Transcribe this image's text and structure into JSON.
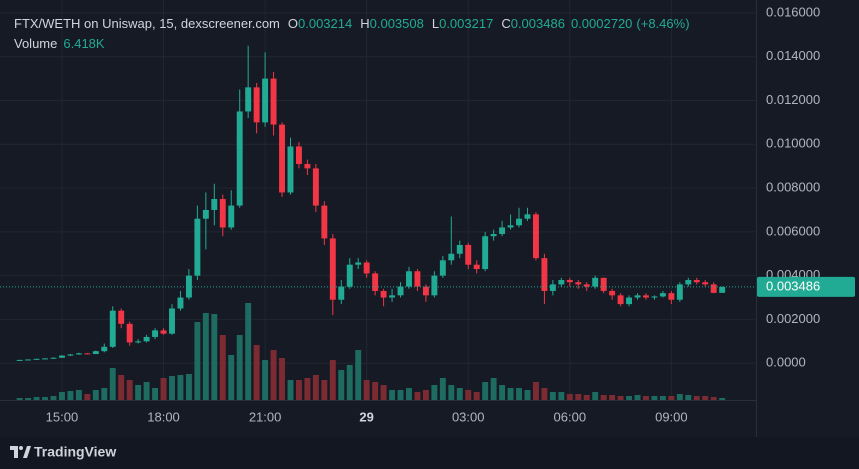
{
  "chart_data": {
    "type": "candlestick",
    "title": "FTX/WETH on Uniswap, 15, dexscreener.com",
    "ohlc_header": [
      {
        "key": "O",
        "value": "0.003214"
      },
      {
        "key": "H",
        "value": "0.003508"
      },
      {
        "key": "L",
        "value": "0.003217"
      },
      {
        "key": "C",
        "value": "0.003486"
      }
    ],
    "change": "0.0002720",
    "change_percent": "(+8.46%)",
    "volume_label": "Volume",
    "volume_value": "6.418K",
    "up_color": "#22ab94",
    "down_color": "#f23645",
    "volume_up_color": "#1d6b61",
    "volume_down_color": "#7d2b33",
    "grid": true,
    "x": [
      13.75,
      14,
      14.25,
      14.5,
      14.75,
      15,
      15.25,
      15.5,
      15.75,
      16,
      16.25,
      16.5,
      16.75,
      17,
      17.25,
      17.5,
      17.75,
      18,
      18.25,
      18.5,
      18.75,
      19,
      19.25,
      19.5,
      19.75,
      20,
      20.25,
      20.5,
      20.75,
      21,
      21.25,
      21.5,
      21.75,
      22,
      22.25,
      22.5,
      22.75,
      23,
      23.25,
      23.5,
      23.75,
      24,
      24.25,
      24.5,
      24.75,
      25,
      25.25,
      25.5,
      25.75,
      26,
      26.25,
      26.5,
      26.75,
      27,
      27.25,
      27.5,
      27.75,
      28,
      28.25,
      28.5,
      28.75,
      29,
      29.25,
      29.5,
      29.75,
      30,
      30.25,
      30.5,
      30.75,
      31,
      31.25,
      31.5,
      31.75,
      32,
      32.25,
      32.5,
      32.75,
      33,
      33.25,
      33.5,
      33.75,
      34,
      34.25,
      34.5
    ],
    "open": [
      0.00014,
      0.00015,
      0.00017,
      0.0002,
      0.00022,
      0.00025,
      0.00035,
      0.0004,
      0.00045,
      0.00042,
      0.00055,
      0.00075,
      0.0024,
      0.0018,
      0.00095,
      0.001,
      0.0012,
      0.0015,
      0.00135,
      0.0025,
      0.003,
      0.004,
      0.0066,
      0.007,
      0.0075,
      0.0062,
      0.0072,
      0.0115,
      0.0126,
      0.011,
      0.013,
      0.0109,
      0.0078,
      0.0099,
      0.0091,
      0.0089,
      0.0072,
      0.0057,
      0.0029,
      0.0035,
      0.0045,
      0.0046,
      0.0041,
      0.0033,
      0.003,
      0.0031,
      0.0035,
      0.0042,
      0.0035,
      0.0031,
      0.004,
      0.0047,
      0.005,
      0.0054,
      0.0045,
      0.0043,
      0.0058,
      0.0059,
      0.0062,
      0.0063,
      0.0066,
      0.0068,
      0.0048,
      0.0033,
      0.0036,
      0.0038,
      0.0037,
      0.0036,
      0.0035,
      0.0039,
      0.0033,
      0.0031,
      0.0027,
      0.003,
      0.0031,
      0.003,
      0.00305,
      0.0032,
      0.0029,
      0.0036,
      0.0038,
      0.0037,
      0.0036,
      0.003214
    ],
    "high": [
      0.00016,
      0.00018,
      0.00021,
      0.00023,
      0.00027,
      0.00037,
      0.00042,
      0.00048,
      0.00047,
      0.00058,
      0.0009,
      0.0026,
      0.0025,
      0.0019,
      0.0011,
      0.0013,
      0.0016,
      0.0016,
      0.0027,
      0.0033,
      0.0043,
      0.0072,
      0.0078,
      0.0082,
      0.0077,
      0.0079,
      0.0125,
      0.0145,
      0.0128,
      0.0142,
      0.0133,
      0.011,
      0.0103,
      0.0101,
      0.0093,
      0.0091,
      0.0074,
      0.0059,
      0.0038,
      0.0048,
      0.0048,
      0.0047,
      0.0042,
      0.0034,
      0.0034,
      0.0037,
      0.0044,
      0.0043,
      0.0036,
      0.0042,
      0.0049,
      0.0067,
      0.0056,
      0.0055,
      0.0047,
      0.006,
      0.0061,
      0.0065,
      0.0068,
      0.0071,
      0.0071,
      0.0069,
      0.005,
      0.0038,
      0.0039,
      0.0039,
      0.0038,
      0.0037,
      0.004,
      0.0039,
      0.0034,
      0.0032,
      0.0031,
      0.0032,
      0.0032,
      0.0031,
      0.0033,
      0.0033,
      0.0037,
      0.0039,
      0.0039,
      0.0038,
      0.0037,
      0.003508
    ],
    "low": [
      0.00013,
      0.00014,
      0.00016,
      0.00019,
      0.00021,
      0.00024,
      0.00033,
      0.00038,
      0.0004,
      0.00041,
      0.0005,
      0.0007,
      0.0016,
      0.0008,
      0.0009,
      0.00095,
      0.0011,
      0.0013,
      0.0013,
      0.0024,
      0.0029,
      0.0038,
      0.0052,
      0.0063,
      0.0058,
      0.0061,
      0.0071,
      0.0112,
      0.0105,
      0.0108,
      0.0104,
      0.0076,
      0.0077,
      0.0089,
      0.0086,
      0.0069,
      0.0054,
      0.0022,
      0.0027,
      0.0034,
      0.0043,
      0.0039,
      0.0031,
      0.0026,
      0.0028,
      0.003,
      0.0034,
      0.0033,
      0.0028,
      0.003,
      0.0039,
      0.0045,
      0.0048,
      0.0043,
      0.0041,
      0.0042,
      0.0056,
      0.0058,
      0.0061,
      0.0062,
      0.0065,
      0.0047,
      0.0027,
      0.0031,
      0.0035,
      0.0035,
      0.0034,
      0.0033,
      0.0034,
      0.0032,
      0.0029,
      0.0026,
      0.0026,
      0.0029,
      0.0029,
      0.0029,
      0.003,
      0.0027,
      0.0028,
      0.0035,
      0.0036,
      0.0035,
      0.0032,
      0.003217
    ],
    "close": [
      0.00015,
      0.00017,
      0.0002,
      0.00022,
      0.00025,
      0.00035,
      0.0004,
      0.00045,
      0.00042,
      0.00055,
      0.00075,
      0.0024,
      0.0018,
      0.00095,
      0.001,
      0.0012,
      0.0015,
      0.00135,
      0.0025,
      0.003,
      0.004,
      0.0066,
      0.007,
      0.0075,
      0.0062,
      0.0072,
      0.0115,
      0.0126,
      0.011,
      0.013,
      0.0109,
      0.0078,
      0.0099,
      0.0091,
      0.0089,
      0.0072,
      0.0057,
      0.0029,
      0.0035,
      0.0045,
      0.0046,
      0.0041,
      0.0033,
      0.003,
      0.0031,
      0.0035,
      0.0042,
      0.0035,
      0.0031,
      0.004,
      0.0047,
      0.005,
      0.0054,
      0.0045,
      0.0043,
      0.0058,
      0.0059,
      0.0062,
      0.0063,
      0.0066,
      0.0068,
      0.0048,
      0.0033,
      0.0036,
      0.0038,
      0.0037,
      0.0036,
      0.0035,
      0.0039,
      0.0033,
      0.0031,
      0.0027,
      0.003,
      0.0031,
      0.003,
      0.00305,
      0.0032,
      0.0029,
      0.0036,
      0.0038,
      0.0037,
      0.0036,
      0.003214,
      0.003486
    ],
    "volume": [
      6400,
      6400,
      9600,
      9600,
      12800,
      25600,
      28800,
      32000,
      19200,
      32000,
      38400,
      102400,
      80000,
      64000,
      48000,
      57600,
      38400,
      70400,
      76800,
      80000,
      83200,
      249600,
      278400,
      275200,
      208000,
      144000,
      208000,
      310400,
      176000,
      128000,
      160000,
      134400,
      64000,
      64000,
      70400,
      80000,
      64000,
      128000,
      96000,
      112000,
      160000,
      64000,
      57600,
      48000,
      32000,
      32000,
      38400,
      25600,
      32000,
      48000,
      70400,
      48000,
      38400,
      32000,
      25600,
      57600,
      70400,
      48000,
      38400,
      38400,
      32000,
      57600,
      38400,
      25600,
      25600,
      19200,
      19200,
      16000,
      25600,
      16000,
      16000,
      12800,
      12800,
      16000,
      12800,
      12800,
      12800,
      12800,
      19200,
      16000,
      12800,
      12800,
      9600,
      6418
    ],
    "volume_lim": [
      0,
      1280000
    ],
    "xlim": [
      13.17,
      35.47
    ],
    "xticks": [
      {
        "value": 15,
        "label": "15:00"
      },
      {
        "value": 18,
        "label": "18:00"
      },
      {
        "value": 21,
        "label": "21:00"
      },
      {
        "value": 24,
        "label": "29"
      },
      {
        "value": 27,
        "label": "03:00"
      },
      {
        "value": 30,
        "label": "06:00"
      },
      {
        "value": 33,
        "label": "09:00"
      }
    ],
    "ylim": [
      -0.00168,
      0.01659
    ],
    "yticks": [
      {
        "value": 0.016,
        "label": "0.016000"
      },
      {
        "value": 0.014,
        "label": "0.014000"
      },
      {
        "value": 0.012,
        "label": "0.012000"
      },
      {
        "value": 0.01,
        "label": "0.010000"
      },
      {
        "value": 0.008,
        "label": "0.008000"
      },
      {
        "value": 0.006,
        "label": "0.006000"
      },
      {
        "value": 0.004,
        "label": "0.004000"
      },
      {
        "value": 0.002,
        "label": "0.002000"
      },
      {
        "value": 0,
        "label": "0.0000"
      }
    ],
    "last_price": {
      "value": 0.003486,
      "label": "0.003486"
    }
  },
  "footer": {
    "brand": "TradingView"
  }
}
